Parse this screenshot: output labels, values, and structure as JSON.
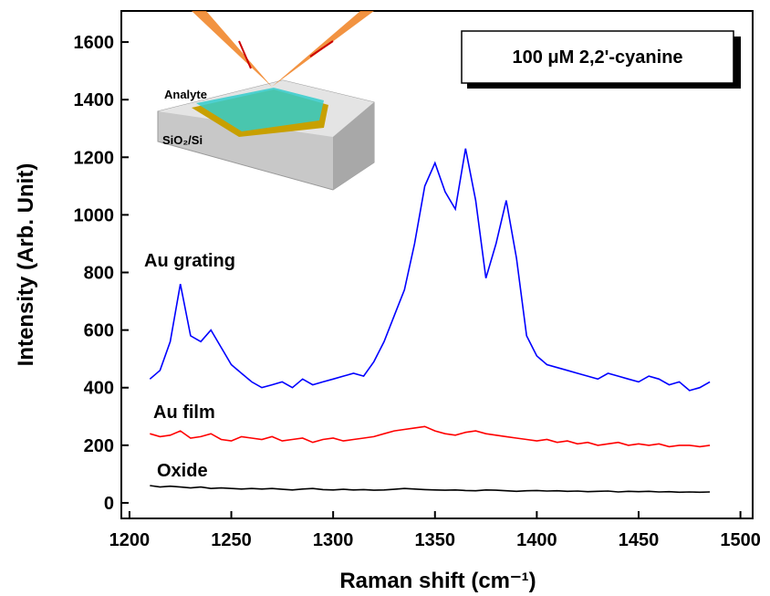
{
  "chart_data": {
    "type": "line",
    "xlabel": "Raman shift (cm⁻¹)",
    "ylabel": "Intensity (Arb. Unit)",
    "annotation": "100 μM 2,2'-cyanine",
    "inset_labels": [
      "Analyte",
      "SiO₂/Si"
    ],
    "x": [
      1210,
      1215,
      1220,
      1225,
      1230,
      1235,
      1240,
      1245,
      1250,
      1255,
      1260,
      1265,
      1270,
      1275,
      1280,
      1285,
      1290,
      1295,
      1300,
      1305,
      1310,
      1315,
      1320,
      1325,
      1330,
      1335,
      1340,
      1345,
      1350,
      1355,
      1360,
      1365,
      1370,
      1375,
      1380,
      1385,
      1390,
      1395,
      1400,
      1405,
      1410,
      1415,
      1420,
      1425,
      1430,
      1435,
      1440,
      1445,
      1450,
      1455,
      1460,
      1465,
      1470,
      1475,
      1480,
      1485
    ],
    "series": [
      {
        "name": "Au grating",
        "color": "#0000ff",
        "values": [
          430,
          460,
          560,
          760,
          580,
          560,
          600,
          540,
          480,
          450,
          420,
          400,
          410,
          420,
          400,
          430,
          410,
          420,
          430,
          440,
          450,
          440,
          490,
          560,
          650,
          740,
          900,
          1100,
          1180,
          1080,
          1020,
          1230,
          1050,
          780,
          900,
          1050,
          850,
          580,
          510,
          480,
          470,
          460,
          450,
          440,
          430,
          450,
          440,
          430,
          420,
          440,
          430,
          410,
          420,
          390,
          400,
          420
        ]
      },
      {
        "name": "Au film",
        "color": "#ff0000",
        "values": [
          240,
          230,
          235,
          250,
          225,
          230,
          240,
          220,
          215,
          230,
          225,
          220,
          230,
          215,
          220,
          225,
          210,
          220,
          225,
          215,
          220,
          225,
          230,
          240,
          250,
          255,
          260,
          265,
          250,
          240,
          235,
          245,
          250,
          240,
          235,
          230,
          225,
          220,
          215,
          220,
          210,
          215,
          205,
          210,
          200,
          205,
          210,
          200,
          205,
          200,
          205,
          195,
          200,
          200,
          195,
          200
        ]
      },
      {
        "name": "Oxide",
        "color": "#000000",
        "values": [
          60,
          55,
          58,
          55,
          52,
          55,
          50,
          52,
          50,
          48,
          50,
          48,
          50,
          47,
          45,
          48,
          50,
          46,
          45,
          47,
          45,
          46,
          44,
          45,
          47,
          50,
          48,
          46,
          45,
          44,
          45,
          43,
          42,
          45,
          44,
          42,
          40,
          42,
          43,
          41,
          42,
          40,
          41,
          39,
          40,
          41,
          38,
          40,
          39,
          40,
          38,
          39,
          37,
          38,
          37,
          38
        ]
      }
    ],
    "xlim": [
      1196,
      1506
    ],
    "ylim": [
      -54,
      1708
    ],
    "xticks": [
      1200,
      1250,
      1300,
      1350,
      1400,
      1450,
      1500
    ],
    "yticks": [
      0,
      200,
      400,
      600,
      800,
      1000,
      1200,
      1400,
      1600
    ]
  }
}
